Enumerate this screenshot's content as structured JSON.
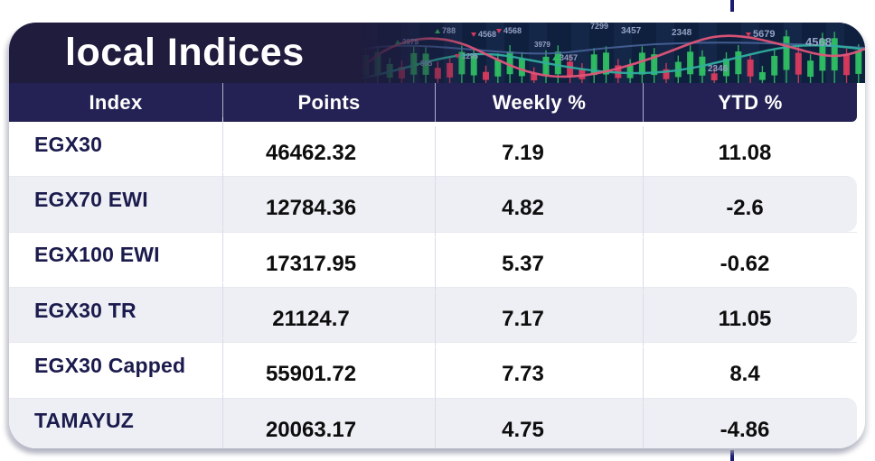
{
  "card": {
    "title": "local Indices"
  },
  "table": {
    "columns": [
      "Index",
      "Points",
      "Weekly %",
      "YTD %"
    ],
    "rows": [
      {
        "index": "EGX30",
        "points": "46462.32",
        "weekly": "7.19",
        "ytd": "11.08"
      },
      {
        "index": "EGX70 EWI",
        "points": "12784.36",
        "weekly": "4.82",
        "ytd": "-2.6"
      },
      {
        "index": "EGX100 EWI",
        "points": "17317.95",
        "weekly": "5.37",
        "ytd": "-0.62"
      },
      {
        "index": "EGX30 TR",
        "points": "21124.7",
        "weekly": "7.17",
        "ytd": "11.05"
      },
      {
        "index": "EGX30 Capped",
        "points": "55901.72",
        "weekly": "7.73",
        "ytd": "8.4"
      },
      {
        "index": "TAMAYUZ",
        "points": "20063.17",
        "weekly": "4.75",
        "ytd": "-4.86"
      }
    ]
  },
  "chart_data": {
    "type": "table",
    "title": "local Indices",
    "columns": [
      "Index",
      "Points",
      "Weekly %",
      "YTD %"
    ],
    "rows": [
      [
        "EGX30",
        46462.32,
        7.19,
        11.08
      ],
      [
        "EGX70 EWI",
        12784.36,
        4.82,
        -2.6
      ],
      [
        "EGX100 EWI",
        17317.95,
        5.37,
        -0.62
      ],
      [
        "EGX30 TR",
        21124.7,
        7.17,
        11.05
      ],
      [
        "EGX30 Capped",
        55901.72,
        7.73,
        8.4
      ],
      [
        "TAMAYUZ",
        20063.17,
        4.75,
        -4.86
      ]
    ]
  },
  "decoration": {
    "labels": [
      {
        "text": "3975",
        "dir": "up"
      },
      {
        "text": "788",
        "dir": "up"
      },
      {
        "text": "565",
        "dir": "up"
      },
      {
        "text": "4568",
        "dir": "down"
      },
      {
        "text": "4568",
        "dir": "down"
      },
      {
        "text": "1295",
        "dir": "down"
      },
      {
        "text": "3979",
        "dir": "none"
      },
      {
        "text": "3457",
        "dir": "up"
      },
      {
        "text": "7299",
        "dir": "none"
      },
      {
        "text": "3457",
        "dir": "none"
      },
      {
        "text": "2348",
        "dir": "none"
      },
      {
        "text": "5679",
        "dir": "down"
      },
      {
        "text": "4568",
        "dir": "none"
      },
      {
        "text": "2346",
        "dir": "up"
      }
    ]
  },
  "colors": {
    "band_bg": "#1f1c3e",
    "header_bg": "#242254",
    "header_text": "#ffffff",
    "title_color": "#ffffff",
    "card_bg": "#ffffff",
    "row_bg": "#ffffff",
    "row_alt_bg": "#edeff4",
    "index_text": "#1b1b4d",
    "value_text": "#0d0d0d",
    "tick": "#1b1b72",
    "deco_bg": "#0f1f3e",
    "deco_green": "#2fbf63",
    "deco_red": "#d93a5e",
    "deco_pink": "#e05578",
    "deco_teal": "#2fae9e",
    "deco_blue": "#4a679e",
    "deco_label": "#93a2c4"
  }
}
